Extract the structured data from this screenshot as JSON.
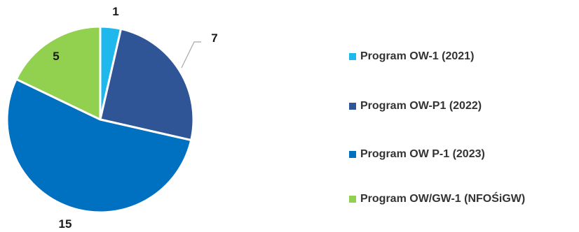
{
  "chart_data": {
    "type": "pie",
    "categories": [
      "Program OW-1 (2021)",
      "Program OW-P1 (2022)",
      "Program OW P-1 (2023)",
      "Program OW/GW-1 (NFOŚiGW)"
    ],
    "values": [
      1,
      7,
      15,
      5
    ],
    "data_labels": [
      "1",
      "7",
      "15",
      "5"
    ],
    "colors": [
      "#1FB8EC",
      "#2F5597",
      "#0070C0",
      "#92D050"
    ],
    "start_angle_deg": 0,
    "direction": "clockwise",
    "legend_position": "right"
  }
}
